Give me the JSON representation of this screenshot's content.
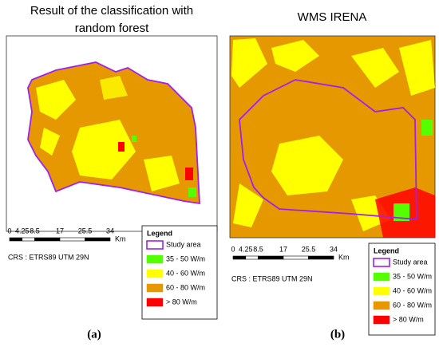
{
  "panels": [
    {
      "title": [
        "Result of the classification with",
        "random forest"
      ],
      "scale": {
        "labels": [
          "0",
          "4.25",
          "8.5",
          "17",
          "25.5",
          "34"
        ],
        "unit": "Km"
      },
      "crs": "CRS : ETRS89 UTM 29N",
      "legend": {
        "title": "Legend",
        "items": [
          {
            "label": "Study area",
            "color": "#a020f0"
          },
          {
            "label": "35 - 50 W/m",
            "color": "#55ff00"
          },
          {
            "label": "40 - 60 W/m",
            "color": "#ffff00"
          },
          {
            "label": "60 - 80 W/m",
            "color": "#e69800"
          },
          {
            "label": "> 80 W/m",
            "color": "#ff0000"
          }
        ]
      },
      "caption": "(a)"
    },
    {
      "title": [
        "WMS IRENA"
      ],
      "scale": {
        "labels": [
          "0",
          "4.25",
          "8.5",
          "17",
          "25.5",
          "34"
        ],
        "unit": "Km"
      },
      "crs": "CRS : ETRS89 UTM 29N",
      "legend": {
        "title": "Legend",
        "items": [
          {
            "label": "Study area",
            "color": "#a020f0"
          },
          {
            "label": "35 - 50 W/m",
            "color": "#55ff00"
          },
          {
            "label": "40 - 60 W/m",
            "color": "#ffff00"
          },
          {
            "label": "60 - 80 W/m",
            "color": "#e69800"
          },
          {
            "label": "> 80 W/m",
            "color": "#ff0000"
          }
        ]
      },
      "caption": "(b)"
    }
  ]
}
